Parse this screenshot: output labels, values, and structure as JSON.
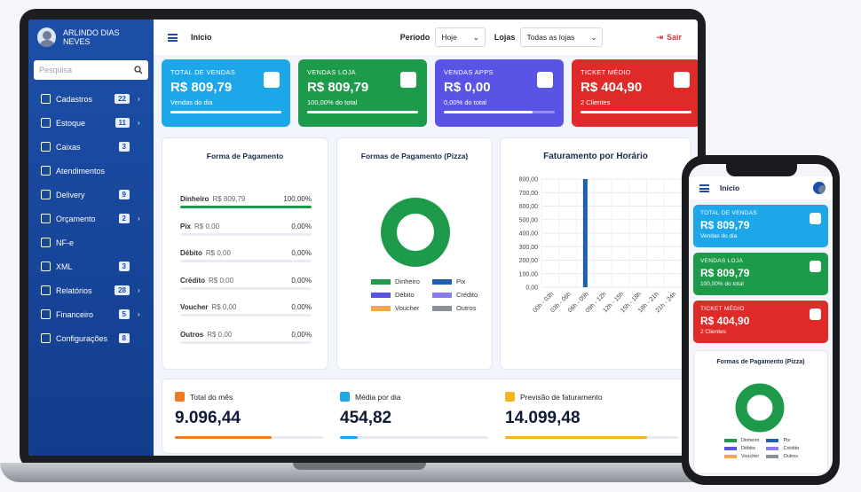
{
  "sidebar": {
    "user_name": "ARLINDO DIAS NEVES",
    "search_placeholder": "Pesquisa",
    "items": [
      {
        "label": "Cadastros",
        "badge": "22",
        "chevron": "›"
      },
      {
        "label": "Estoque",
        "badge": "11",
        "chevron": "›"
      },
      {
        "label": "Caixas",
        "badge": "3",
        "chevron": ""
      },
      {
        "label": "Atendimentos",
        "badge": "",
        "chevron": ""
      },
      {
        "label": "Delivery",
        "badge": "9",
        "chevron": ""
      },
      {
        "label": "Orçamento",
        "badge": "2",
        "chevron": "›"
      },
      {
        "label": "NF-e",
        "badge": "",
        "chevron": ""
      },
      {
        "label": "XML",
        "badge": "3",
        "chevron": ""
      },
      {
        "label": "Relatórios",
        "badge": "28",
        "chevron": "›"
      },
      {
        "label": "Financeiro",
        "badge": "5",
        "chevron": "›"
      },
      {
        "label": "Configurações",
        "badge": "8",
        "chevron": ""
      }
    ]
  },
  "topbar": {
    "page_title": "Início",
    "periodo_label": "Período",
    "periodo_value": "Hoje",
    "lojas_label": "Lojas",
    "lojas_value": "Todas as lojas",
    "logout_label": "Sair"
  },
  "cards": [
    {
      "label": "TOTAL DE VENDAS",
      "value": "R$ 809,79",
      "sub": "Vendas do dia",
      "color": "#1ea7e8",
      "progress": 1.0,
      "icon": "shopping-bag-icon"
    },
    {
      "label": "VENDAS LOJA",
      "value": "R$ 809,79",
      "sub": "100,00% do total",
      "color": "#1e9a4b",
      "progress": 1.0,
      "icon": "store-icon"
    },
    {
      "label": "VENDAS APPS",
      "value": "R$ 0,00",
      "sub": "0,00% do total",
      "color": "#5a54e6",
      "progress": 0.8,
      "icon": "smartphone-icon"
    },
    {
      "label": "TICKET MÉDIO",
      "value": "R$ 404,90",
      "sub": "2 Clientes",
      "color": "#e02a2a",
      "progress": 1.0,
      "icon": "pie-chart-icon"
    }
  ],
  "payment_panel": {
    "title": "Forma de Pagamento",
    "rows": [
      {
        "name": "Dinheiro",
        "amount": "R$ 809,79",
        "pct": "100,00%",
        "fraction": 1.0
      },
      {
        "name": "Pix",
        "amount": "R$ 0,00",
        "pct": "0,00%",
        "fraction": 0
      },
      {
        "name": "Débito",
        "amount": "R$ 0,00",
        "pct": "0,00%",
        "fraction": 0
      },
      {
        "name": "Crédito",
        "amount": "R$ 0,00",
        "pct": "0,00%",
        "fraction": 0
      },
      {
        "name": "Voucher",
        "amount": "R$ 0,00",
        "pct": "0,00%",
        "fraction": 0
      },
      {
        "name": "Outros",
        "amount": "R$ 0,00",
        "pct": "0,00%",
        "fraction": 0
      }
    ]
  },
  "pie_panel": {
    "title": "Formas de Pagamento (Pizza)",
    "legend": [
      {
        "name": "Dinheiro",
        "color": "#1e9a4b"
      },
      {
        "name": "Pix",
        "color": "#1f5fb0"
      },
      {
        "name": "Débito",
        "color": "#5a54e6"
      },
      {
        "name": "Crédito",
        "color": "#8a7cf0"
      },
      {
        "name": "Voucher",
        "color": "#f5a54a"
      },
      {
        "name": "Outros",
        "color": "#8a8f98"
      }
    ]
  },
  "hourly_panel": {
    "title": "Faturamento por Horário"
  },
  "chart_data": [
    {
      "type": "pie",
      "title": "Formas de Pagamento (Pizza)",
      "categories": [
        "Dinheiro",
        "Pix",
        "Débito",
        "Crédito",
        "Voucher",
        "Outros"
      ],
      "values": [
        809.79,
        0,
        0,
        0,
        0,
        0
      ],
      "donut": true
    },
    {
      "type": "bar",
      "title": "Faturamento por Horário",
      "categories": [
        "00h - 03h",
        "03h - 06h",
        "06h - 09h",
        "09h - 12h",
        "12h - 15h",
        "15h - 18h",
        "18h - 21h",
        "21h - 24h"
      ],
      "values": [
        0,
        0,
        809.79,
        0,
        0,
        0,
        0,
        0
      ],
      "ylim": [
        0,
        800
      ],
      "yticks": [
        "0,00",
        "100,00",
        "200,00",
        "300,00",
        "400,00",
        "500,00",
        "600,00",
        "700,00",
        "800,00"
      ],
      "grid": true,
      "color": "#1f5fb0"
    }
  ],
  "bottom": [
    {
      "label": "Total do mês",
      "value": "9.096,44",
      "color": "#f07a1f",
      "progress": 0.65
    },
    {
      "label": "Média por dia",
      "value": "454,82",
      "color": "#1ea7e8",
      "progress": 0.12
    },
    {
      "label": "Previsão de faturamento",
      "value": "14.099,48",
      "color": "#f5b51f",
      "progress": 0.82
    }
  ],
  "phone": {
    "page_title": "Início",
    "cards": [
      {
        "label": "TOTAL DE VENDAS",
        "value": "R$ 809,79",
        "sub": "Vendas do dia",
        "color": "#1ea7e8"
      },
      {
        "label": "VENDAS LOJA",
        "value": "R$ 809,79",
        "sub": "100,00% do total",
        "color": "#1e9a4b"
      },
      {
        "label": "TICKET MÉDIO",
        "value": "R$ 404,90",
        "sub": "2 Clientes",
        "color": "#e02a2a"
      }
    ],
    "pie_title": "Formas de Pagamento (Pizza)"
  }
}
